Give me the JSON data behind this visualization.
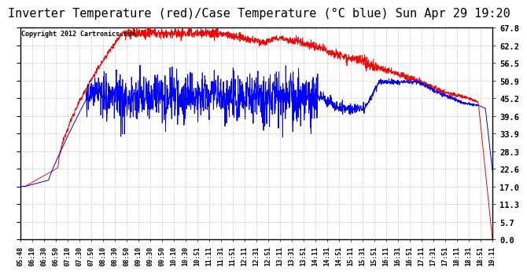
{
  "title": "Inverter Temperature (red)/Case Temperature (°C blue) Sun Apr 29 19:20",
  "copyright": "Copyright 2012 Cartronics.com",
  "background_color": "#ffffff",
  "plot_bg_color": "#ffffff",
  "grid_color": "#c8c8c8",
  "y_ticks": [
    0.0,
    5.7,
    11.3,
    17.0,
    22.6,
    28.3,
    33.9,
    39.6,
    45.2,
    50.9,
    56.5,
    62.2,
    67.8
  ],
  "x_tick_labels": [
    "05:48",
    "06:10",
    "06:30",
    "06:50",
    "07:10",
    "07:30",
    "07:50",
    "08:10",
    "08:30",
    "08:50",
    "09:10",
    "09:30",
    "09:50",
    "10:10",
    "10:30",
    "10:51",
    "11:11",
    "11:31",
    "11:51",
    "12:11",
    "12:31",
    "12:51",
    "13:11",
    "13:31",
    "13:51",
    "14:11",
    "14:31",
    "14:51",
    "15:11",
    "15:31",
    "15:51",
    "16:11",
    "16:31",
    "16:51",
    "17:11",
    "17:31",
    "17:51",
    "18:11",
    "18:31",
    "18:51",
    "19:11"
  ],
  "ylim": [
    0.0,
    67.8
  ],
  "red_color": "#ff0000",
  "blue_color": "#0000ff",
  "title_fontsize": 11,
  "copyright_fontsize": 6,
  "tick_fontsize": 7.5,
  "xtick_fontsize": 6
}
